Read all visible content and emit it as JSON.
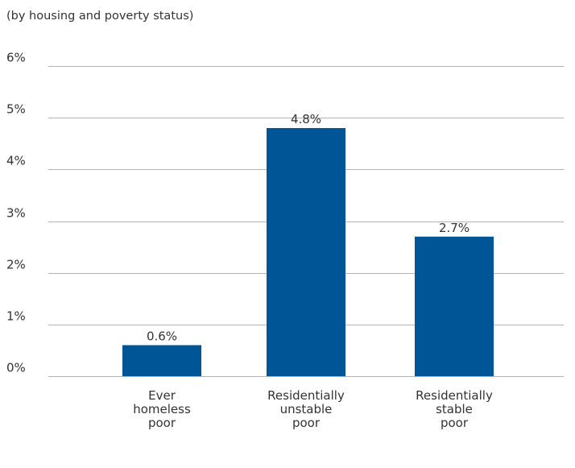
{
  "chart_data": {
    "type": "bar",
    "subtitle": "(by housing and poverty status)",
    "categories": [
      [
        "Ever",
        "homeless",
        "poor"
      ],
      [
        "Residentially",
        "unstable",
        "poor"
      ],
      [
        "Residentially",
        "stable",
        "poor"
      ]
    ],
    "values": [
      0.6,
      4.8,
      2.7
    ],
    "data_labels": [
      "0.6%",
      "4.8%",
      "2.7%"
    ],
    "y_ticks": [
      0,
      1,
      2,
      3,
      4,
      5,
      6
    ],
    "y_tick_labels": [
      "0%",
      "1%",
      "2%",
      "3%",
      "4%",
      "5%",
      "6%"
    ],
    "ylim": [
      0,
      6
    ],
    "grid": true,
    "legend": "none",
    "bar_color": "#005596",
    "grid_color": "#b3b3b3"
  }
}
